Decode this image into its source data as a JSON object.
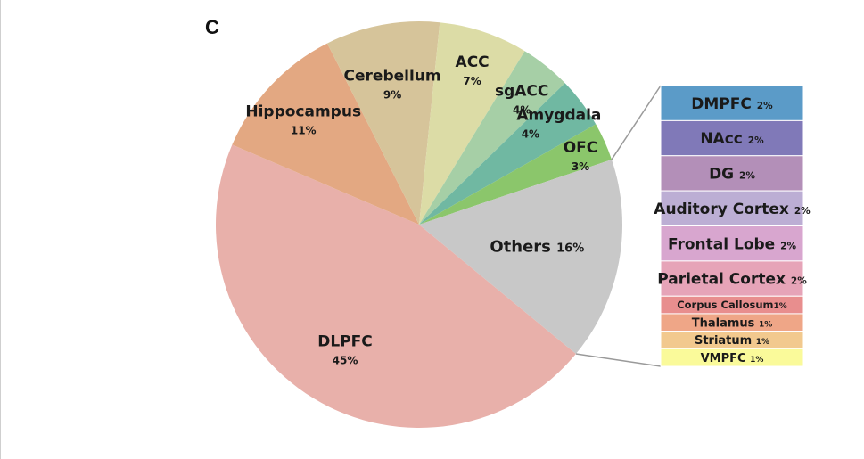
{
  "panel_label": "C",
  "chart_data": {
    "type": "pie",
    "title": "",
    "slices": [
      {
        "label": "DLPFC",
        "value": 45,
        "pct_label": "45%",
        "color": "#e8b0aa"
      },
      {
        "label": "Hippocampus",
        "value": 11,
        "pct_label": "11%",
        "color": "#e3a882"
      },
      {
        "label": "Cerebellum",
        "value": 9,
        "pct_label": "9%",
        "color": "#d6c49a"
      },
      {
        "label": "ACC",
        "value": 7,
        "pct_label": "7%",
        "color": "#dcdca6"
      },
      {
        "label": "sgACC",
        "value": 4,
        "pct_label": "4%",
        "color": "#a6cfa6"
      },
      {
        "label": "Amygdala",
        "value": 4,
        "pct_label": "4%",
        "color": "#70b8a2"
      },
      {
        "label": "OFC",
        "value": 3,
        "pct_label": "3%",
        "color": "#8bc66b"
      },
      {
        "label": "Others",
        "value": 16,
        "pct_label": "16%",
        "color": "#c8c8c8"
      }
    ],
    "others_breakdown": {
      "type": "stacked-bar",
      "items": [
        {
          "label": "DMPFC",
          "value": 2,
          "pct_label": "2%",
          "color": "#5b9bc8"
        },
        {
          "label": "NAcc",
          "value": 2,
          "pct_label": "2%",
          "color": "#8079b8"
        },
        {
          "label": "DG",
          "value": 2,
          "pct_label": "2%",
          "color": "#b38fb8"
        },
        {
          "label": "Auditory Cortex",
          "value": 2,
          "pct_label": "2%",
          "color": "#bcaed4"
        },
        {
          "label": "Frontal Lobe",
          "value": 2,
          "pct_label": "2%",
          "color": "#d8a6cf"
        },
        {
          "label": "Parietal Cortex",
          "value": 2,
          "pct_label": "2%",
          "color": "#e6a4b8"
        },
        {
          "label": "Corpus Callosum",
          "value": 1,
          "pct_label": "1%",
          "color": "#e88e8e"
        },
        {
          "label": "Thalamus",
          "value": 1,
          "pct_label": "1%",
          "color": "#efa687"
        },
        {
          "label": "Striatum",
          "value": 1,
          "pct_label": "1%",
          "color": "#f2c98e"
        },
        {
          "label": "VMPFC",
          "value": 1,
          "pct_label": "1%",
          "color": "#fafa9a"
        }
      ]
    }
  }
}
